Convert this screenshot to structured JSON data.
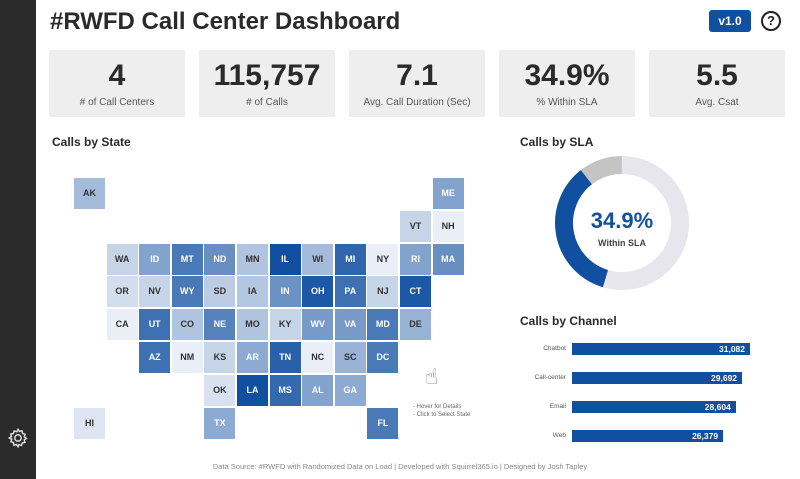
{
  "header": {
    "title": "#RWFD Call Center Dashboard",
    "version": "v1.0",
    "help": "?"
  },
  "sidebar": {
    "icon": "gear-icon"
  },
  "kpis": [
    {
      "value": "4",
      "label": "# of Call Centers"
    },
    {
      "value": "115,757",
      "label": "# of Calls"
    },
    {
      "value": "7.1",
      "label": "Avg. Call Duration (Sec)"
    },
    {
      "value": "34.9%",
      "label": "% Within SLA"
    },
    {
      "value": "5.5",
      "label": "Avg. Csat"
    }
  ],
  "map": {
    "title": "Calls by State",
    "hint1": "- Hover for Details",
    "hint2": "- Click to Select State",
    "low_color": "#f3f5fa",
    "high_color": "#1150a0",
    "states": [
      {
        "s": "AK",
        "r": 0,
        "c": 0,
        "v": 0.35
      },
      {
        "s": "ME",
        "r": 0,
        "c": 11,
        "v": 0.5
      },
      {
        "s": "VT",
        "r": 1,
        "c": 10,
        "v": 0.2
      },
      {
        "s": "NH",
        "r": 1,
        "c": 11,
        "v": 0.04
      },
      {
        "s": "WA",
        "r": 2,
        "c": 1,
        "v": 0.2
      },
      {
        "s": "ID",
        "r": 2,
        "c": 2,
        "v": 0.5
      },
      {
        "s": "MT",
        "r": 2,
        "c": 3,
        "v": 0.75
      },
      {
        "s": "ND",
        "r": 2,
        "c": 4,
        "v": 0.62
      },
      {
        "s": "MN",
        "r": 2,
        "c": 5,
        "v": 0.3
      },
      {
        "s": "IL",
        "r": 2,
        "c": 6,
        "v": 1
      },
      {
        "s": "WI",
        "r": 2,
        "c": 7,
        "v": 0.35
      },
      {
        "s": "MI",
        "r": 2,
        "c": 8,
        "v": 0.87
      },
      {
        "s": "NY",
        "r": 2,
        "c": 9,
        "v": 0.04
      },
      {
        "s": "RI",
        "r": 2,
        "c": 10,
        "v": 0.5
      },
      {
        "s": "MA",
        "r": 2,
        "c": 11,
        "v": 0.62
      },
      {
        "s": "OR",
        "r": 3,
        "c": 1,
        "v": 0.14
      },
      {
        "s": "NV",
        "r": 3,
        "c": 2,
        "v": 0.2
      },
      {
        "s": "WY",
        "r": 3,
        "c": 3,
        "v": 0.75
      },
      {
        "s": "SD",
        "r": 3,
        "c": 4,
        "v": 0.25
      },
      {
        "s": "IA",
        "r": 3,
        "c": 5,
        "v": 0.28
      },
      {
        "s": "IN",
        "r": 3,
        "c": 6,
        "v": 0.6
      },
      {
        "s": "OH",
        "r": 3,
        "c": 7,
        "v": 0.95
      },
      {
        "s": "PA",
        "r": 3,
        "c": 8,
        "v": 0.8
      },
      {
        "s": "NJ",
        "r": 3,
        "c": 9,
        "v": 0.2
      },
      {
        "s": "CT",
        "r": 3,
        "c": 10,
        "v": 0.95
      },
      {
        "s": "CA",
        "r": 4,
        "c": 1,
        "v": 0.04
      },
      {
        "s": "UT",
        "r": 4,
        "c": 2,
        "v": 0.8
      },
      {
        "s": "CO",
        "r": 4,
        "c": 3,
        "v": 0.3
      },
      {
        "s": "NE",
        "r": 4,
        "c": 4,
        "v": 0.7
      },
      {
        "s": "MO",
        "r": 4,
        "c": 5,
        "v": 0.3
      },
      {
        "s": "KY",
        "r": 4,
        "c": 6,
        "v": 0.2
      },
      {
        "s": "WV",
        "r": 4,
        "c": 7,
        "v": 0.55
      },
      {
        "s": "VA",
        "r": 4,
        "c": 8,
        "v": 0.55
      },
      {
        "s": "MD",
        "r": 4,
        "c": 9,
        "v": 0.75
      },
      {
        "s": "DE",
        "r": 4,
        "c": 10,
        "v": 0.4
      },
      {
        "s": "AZ",
        "r": 5,
        "c": 2,
        "v": 0.8
      },
      {
        "s": "NM",
        "r": 5,
        "c": 3,
        "v": 0.04
      },
      {
        "s": "KS",
        "r": 5,
        "c": 4,
        "v": 0.2
      },
      {
        "s": "AR",
        "r": 5,
        "c": 5,
        "v": 0.45
      },
      {
        "s": "TN",
        "r": 5,
        "c": 6,
        "v": 0.9
      },
      {
        "s": "NC",
        "r": 5,
        "c": 7,
        "v": 0.04
      },
      {
        "s": "SC",
        "r": 5,
        "c": 8,
        "v": 0.4
      },
      {
        "s": "DC",
        "r": 5,
        "c": 9,
        "v": 0.75
      },
      {
        "s": "OK",
        "r": 6,
        "c": 4,
        "v": 0.12
      },
      {
        "s": "LA",
        "r": 6,
        "c": 5,
        "v": 1
      },
      {
        "s": "MS",
        "r": 6,
        "c": 6,
        "v": 0.85
      },
      {
        "s": "AL",
        "r": 6,
        "c": 7,
        "v": 0.5
      },
      {
        "s": "GA",
        "r": 6,
        "c": 8,
        "v": 0.45
      },
      {
        "s": "HI",
        "r": 7,
        "c": 0,
        "v": 0.1
      },
      {
        "s": "TX",
        "r": 7,
        "c": 4,
        "v": 0.45
      },
      {
        "s": "FL",
        "r": 7,
        "c": 9,
        "v": 0.75
      }
    ]
  },
  "sla": {
    "title": "Calls by SLA",
    "percent": "34.9%",
    "label": "Within SLA",
    "within": 34.9,
    "other": 10.5,
    "colors": {
      "within": "#1150a0",
      "other": "#c4c4c4",
      "rest": "#e6e6ec"
    }
  },
  "channel": {
    "title": "Calls by Channel",
    "items": [
      {
        "label": "Chatbot",
        "value": 31082,
        "text": "31,082"
      },
      {
        "label": "Call-center",
        "value": 29692,
        "text": "29,692"
      },
      {
        "label": "Email",
        "value": 28604,
        "text": "28,604"
      },
      {
        "label": "Web",
        "value": 26379,
        "text": "26,379"
      }
    ]
  },
  "footer": "Data Source: #RWFD with Randomized Data on Load | Developed with Squirrel365.io | Designed by Josh Tapley"
}
